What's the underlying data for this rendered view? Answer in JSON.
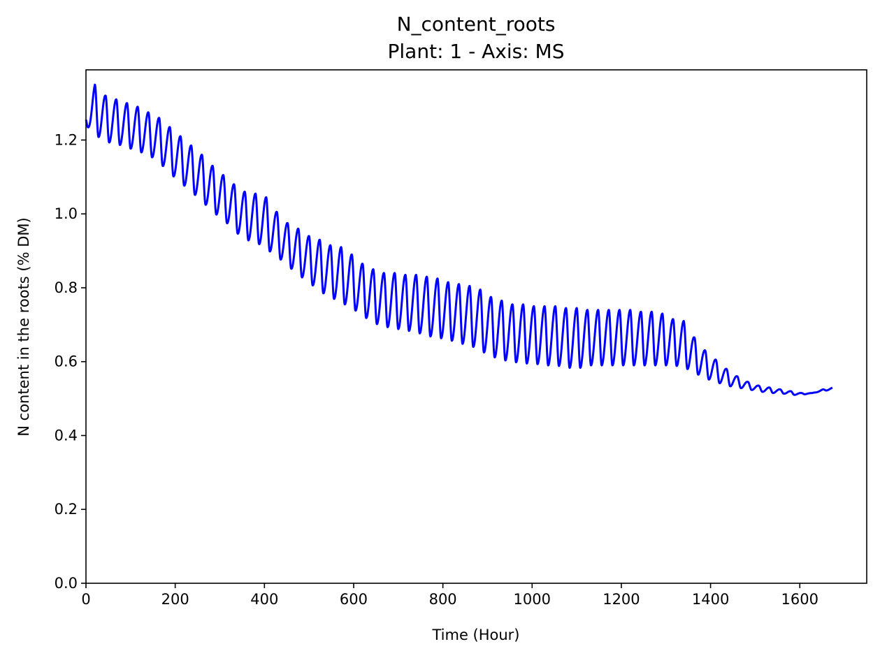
{
  "chart_data": {
    "type": "line",
    "title": "N_content_roots",
    "subtitle": "Plant: 1 - Axis: MS",
    "xlabel": "Time (Hour)",
    "ylabel": "N content in the roots (% DM)",
    "xlim": [
      0,
      1750
    ],
    "ylim": [
      0,
      1.39
    ],
    "xticks": [
      0,
      200,
      400,
      600,
      800,
      1000,
      1200,
      1400,
      1600
    ],
    "xtick_labels": [
      "0",
      "200",
      "400",
      "600",
      "800",
      "1000",
      "1200",
      "1400",
      "1600"
    ],
    "yticks": [
      0.0,
      0.2,
      0.4,
      0.6,
      0.8,
      1.0,
      1.2
    ],
    "ytick_labels": [
      "0.0",
      "0.2",
      "0.4",
      "0.6",
      "0.8",
      "1.0",
      "1.2"
    ],
    "grid": false,
    "series": [
      {
        "color": "#0000ff",
        "x_range": [
          0,
          1673
        ],
        "period_hours": 24,
        "peak_hour_in_day": 20,
        "trough_hour_in_day": 4,
        "envelope": {
          "x": [
            0,
            20,
            44,
            68,
            92,
            116,
            140,
            164,
            188,
            212,
            236,
            260,
            284,
            308,
            332,
            356,
            380,
            404,
            428,
            452,
            476,
            500,
            524,
            548,
            572,
            596,
            620,
            644,
            668,
            692,
            716,
            740,
            764,
            788,
            812,
            836,
            860,
            884,
            908,
            932,
            956,
            980,
            1004,
            1028,
            1052,
            1076,
            1100,
            1124,
            1148,
            1172,
            1196,
            1220,
            1244,
            1268,
            1292,
            1316,
            1340,
            1364,
            1388,
            1412,
            1436,
            1460,
            1484,
            1508,
            1532,
            1556,
            1580,
            1604,
            1628,
            1652,
            1673
          ],
          "peak": [
            1.27,
            1.35,
            1.32,
            1.31,
            1.3,
            1.29,
            1.275,
            1.26,
            1.235,
            1.21,
            1.185,
            1.16,
            1.13,
            1.105,
            1.08,
            1.06,
            1.055,
            1.045,
            1.005,
            0.975,
            0.96,
            0.94,
            0.93,
            0.915,
            0.91,
            0.89,
            0.865,
            0.85,
            0.84,
            0.84,
            0.835,
            0.835,
            0.83,
            0.825,
            0.815,
            0.81,
            0.805,
            0.795,
            0.775,
            0.765,
            0.755,
            0.755,
            0.75,
            0.75,
            0.75,
            0.745,
            0.745,
            0.74,
            0.74,
            0.74,
            0.74,
            0.74,
            0.735,
            0.735,
            0.73,
            0.715,
            0.71,
            0.665,
            0.63,
            0.605,
            0.58,
            0.56,
            0.545,
            0.535,
            0.53,
            0.525,
            0.52,
            0.515,
            0.515,
            0.525,
            0.53
          ],
          "trough": [
            1.24,
            1.215,
            1.195,
            1.19,
            1.18,
            1.17,
            1.16,
            1.14,
            1.11,
            1.085,
            1.06,
            1.035,
            1.005,
            0.985,
            0.955,
            0.93,
            0.925,
            0.905,
            0.885,
            0.86,
            0.835,
            0.815,
            0.79,
            0.775,
            0.76,
            0.745,
            0.725,
            0.705,
            0.695,
            0.69,
            0.685,
            0.68,
            0.67,
            0.665,
            0.66,
            0.65,
            0.645,
            0.63,
            0.615,
            0.605,
            0.6,
            0.595,
            0.595,
            0.59,
            0.59,
            0.585,
            0.58,
            0.59,
            0.59,
            0.59,
            0.59,
            0.59,
            0.59,
            0.59,
            0.59,
            0.59,
            0.585,
            0.57,
            0.555,
            0.545,
            0.535,
            0.53,
            0.525,
            0.52,
            0.515,
            0.515,
            0.51,
            0.51,
            0.515,
            0.52,
            0.525
          ]
        }
      }
    ]
  }
}
